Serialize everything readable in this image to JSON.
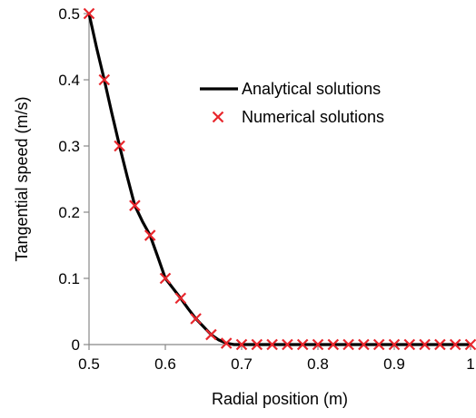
{
  "chart_data": {
    "type": "line",
    "title": "",
    "xlabel": "Radial position (m)",
    "ylabel": "Tangential speed (m/s)",
    "xlim": [
      0.5,
      1.0
    ],
    "ylim": [
      0,
      0.5
    ],
    "x_ticks": [
      "0.5",
      "0.6",
      "0.7",
      "0.8",
      "0.9",
      "1"
    ],
    "y_ticks": [
      "0",
      "0.1",
      "0.2",
      "0.3",
      "0.4",
      "0.5"
    ],
    "grid": false,
    "legend_position": "top-right",
    "series": [
      {
        "name": "Analytical solutions",
        "kind": "line",
        "color": "#000000",
        "x": [
          0.5,
          0.51,
          0.52,
          0.53,
          0.54,
          0.55,
          0.56,
          0.57,
          0.58,
          0.59,
          0.6,
          0.61,
          0.62,
          0.63,
          0.64,
          0.65,
          0.66,
          0.67,
          0.68,
          0.69,
          0.7,
          1.0
        ],
        "y": [
          0.5,
          0.448,
          0.4,
          0.349,
          0.3,
          0.254,
          0.21,
          0.186,
          0.165,
          0.133,
          0.1,
          0.085,
          0.07,
          0.054,
          0.039,
          0.027,
          0.015,
          0.007,
          0.002,
          0.0,
          0.0,
          0.0
        ]
      },
      {
        "name": "Numerical solutions",
        "kind": "marker",
        "marker": "x",
        "color": "#e8262c",
        "x": [
          0.5,
          0.52,
          0.54,
          0.56,
          0.58,
          0.6,
          0.62,
          0.64,
          0.66,
          0.68,
          0.7,
          0.72,
          0.74,
          0.76,
          0.78,
          0.8,
          0.82,
          0.84,
          0.86,
          0.88,
          0.9,
          0.92,
          0.94,
          0.96,
          0.98,
          1.0
        ],
        "y": [
          0.5,
          0.4,
          0.3,
          0.21,
          0.165,
          0.1,
          0.07,
          0.039,
          0.015,
          0.002,
          0.0,
          0.0,
          0.0,
          0.0,
          0.0,
          0.0,
          0.0,
          0.0,
          0.0,
          0.0,
          0.0,
          0.0,
          0.0,
          0.0,
          0.0,
          0.0
        ]
      }
    ]
  }
}
